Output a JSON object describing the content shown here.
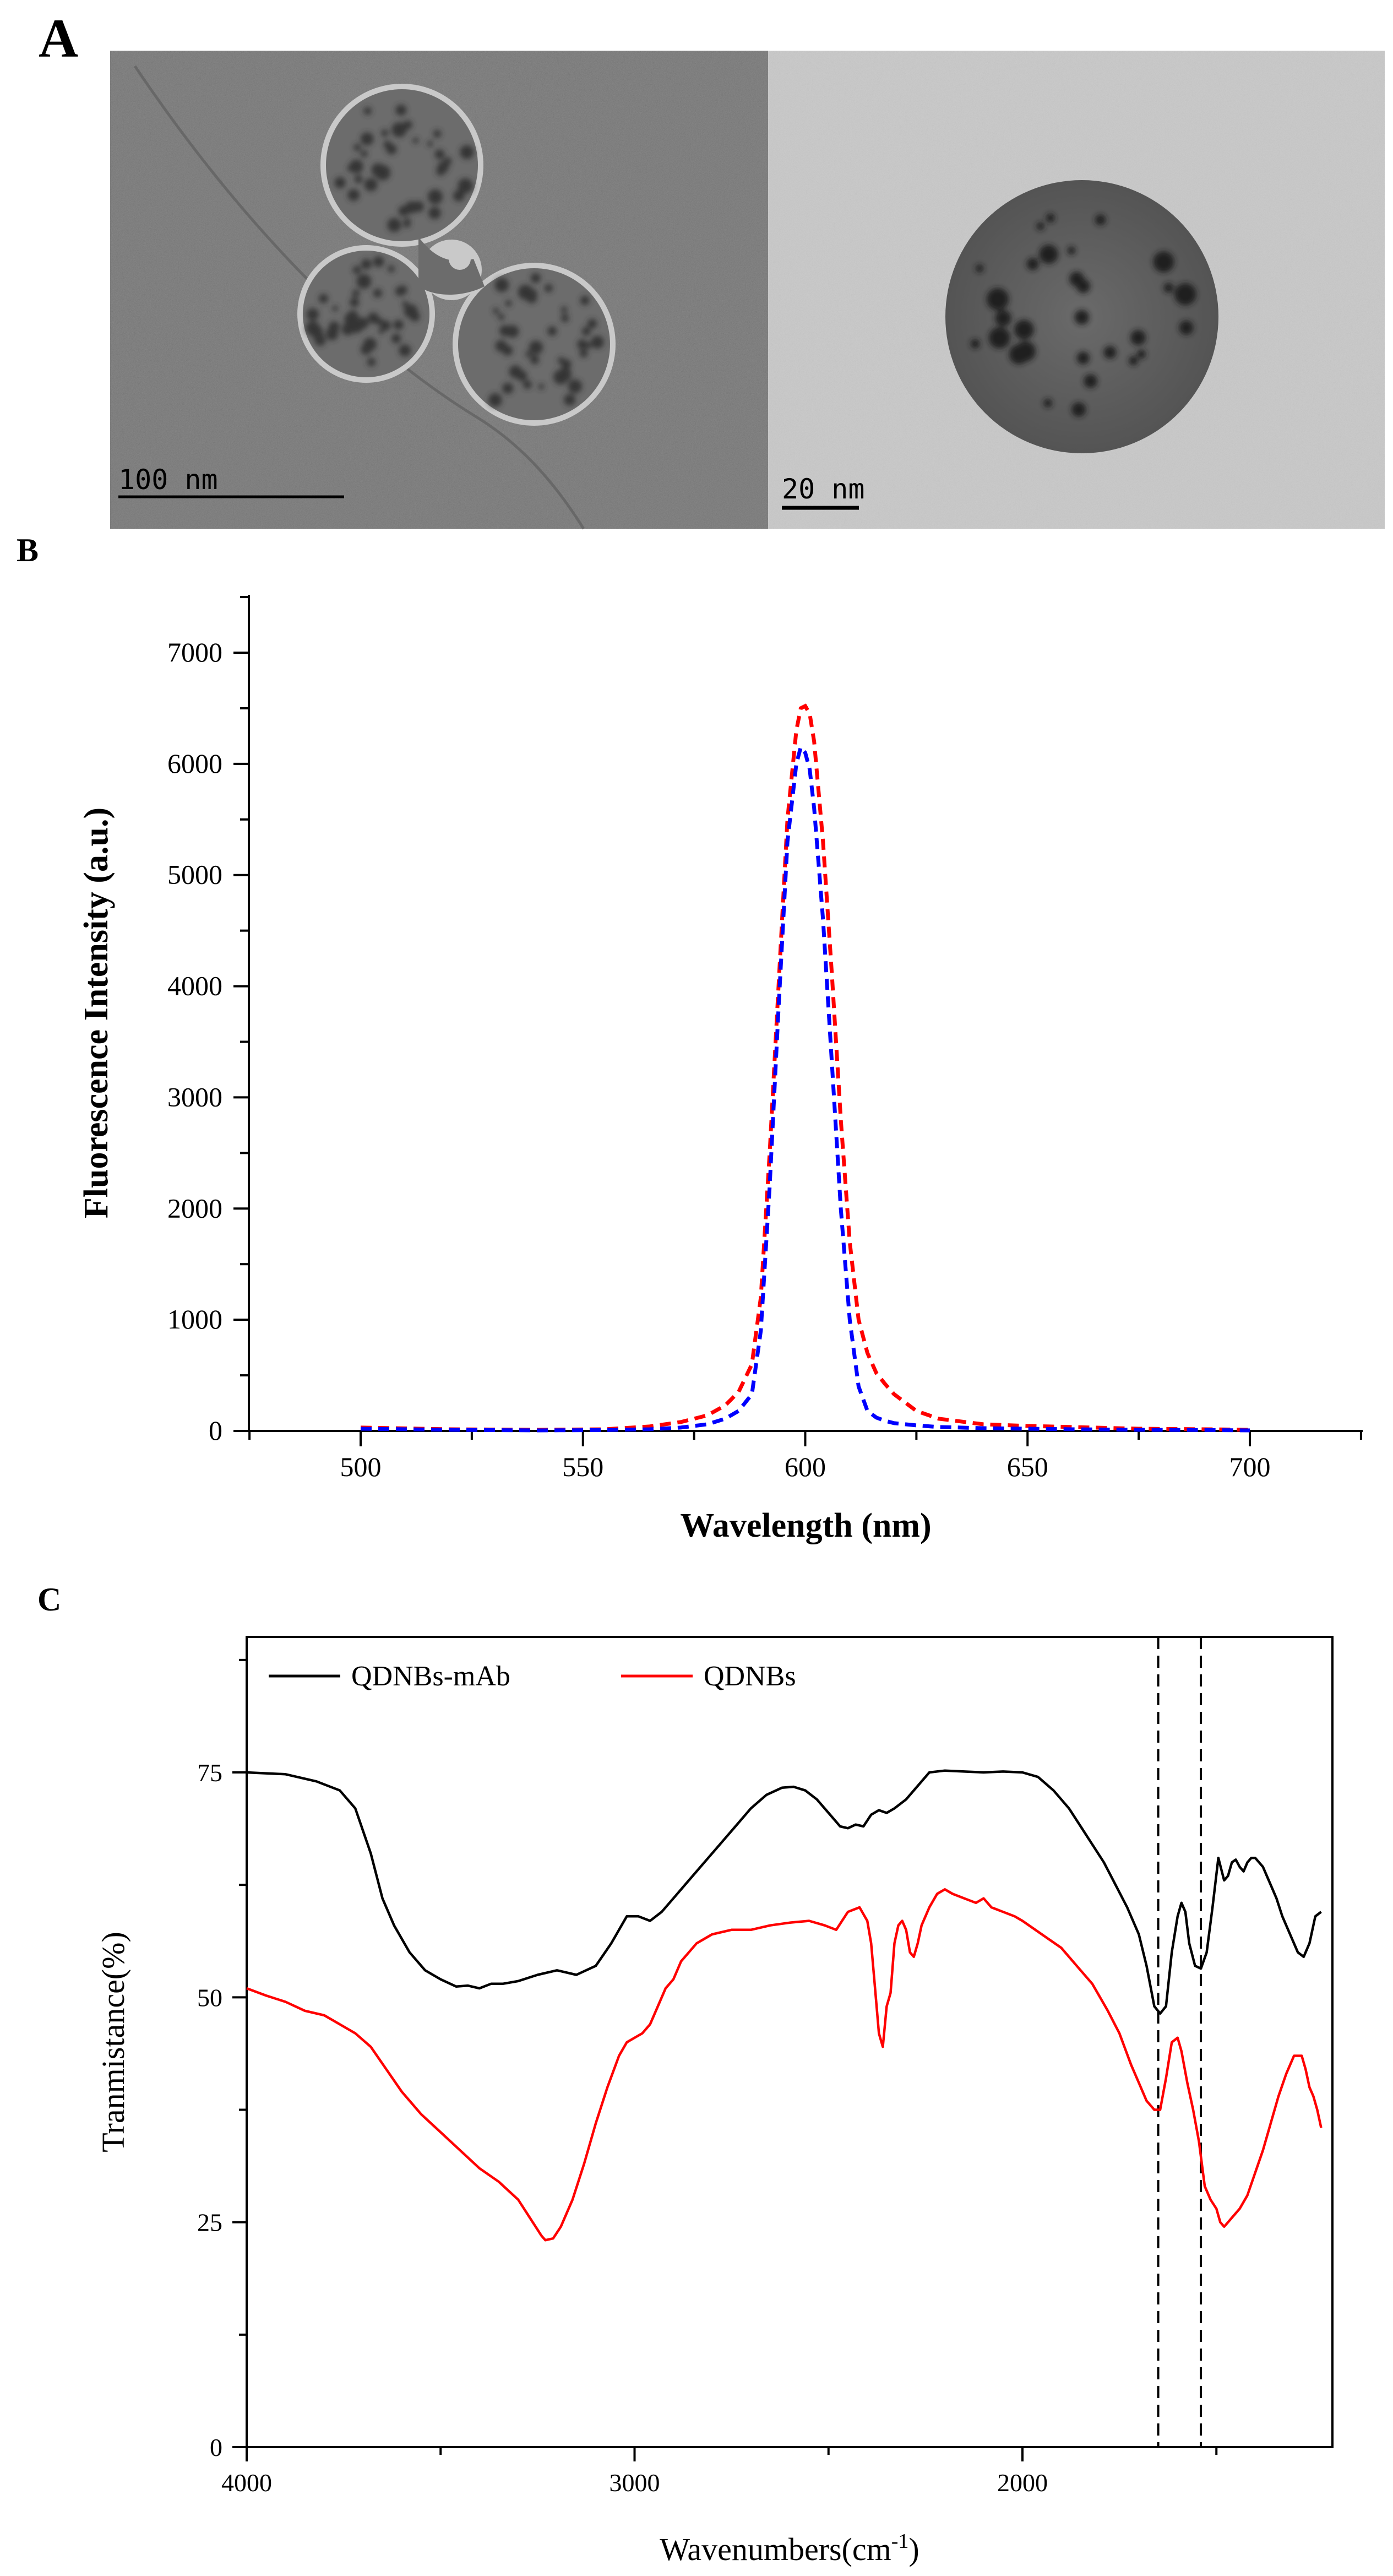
{
  "panels": {
    "a_label": "A",
    "b_label": "B",
    "c_label": "C"
  },
  "tem": {
    "left_scale": "100 nm",
    "right_scale": "20 nm"
  },
  "chart_data": [
    {
      "type": "line",
      "title": "",
      "xlabel": "Wavelength (nm)",
      "ylabel": "Fluorescence Intensity (a.u.)",
      "xlim": [
        475,
        725
      ],
      "ylim": [
        0,
        7500
      ],
      "xticks": [
        500,
        550,
        600,
        650,
        700
      ],
      "yticks": [
        0,
        1000,
        2000,
        3000,
        4000,
        5000,
        6000,
        7000
      ],
      "line_style": "dashed",
      "x": [
        500,
        520,
        540,
        555,
        565,
        572,
        578,
        582,
        585,
        588,
        590,
        592,
        594,
        596,
        598,
        599,
        600,
        601,
        602,
        604,
        606,
        608,
        610,
        612,
        614,
        616,
        618,
        620,
        625,
        630,
        640,
        650,
        660,
        675,
        690,
        700
      ],
      "series": [
        {
          "color": "#ff0000",
          "values": [
            30,
            15,
            10,
            15,
            40,
            80,
            140,
            230,
            350,
            600,
            1200,
            2500,
            4000,
            5500,
            6300,
            6500,
            6520,
            6450,
            6200,
            5300,
            4100,
            2800,
            1700,
            1000,
            700,
            520,
            420,
            330,
            180,
            110,
            60,
            45,
            35,
            20,
            15,
            10
          ]
        },
        {
          "color": "#0000ff",
          "values": [
            20,
            10,
            5,
            8,
            15,
            30,
            60,
            110,
            180,
            330,
            900,
            2200,
            3800,
            5300,
            6000,
            6150,
            6100,
            5950,
            5600,
            4600,
            3300,
            2000,
            1000,
            400,
            180,
            120,
            90,
            70,
            50,
            35,
            25,
            20,
            15,
            10,
            8,
            5
          ]
        }
      ]
    },
    {
      "type": "line",
      "title": "",
      "xlabel": "Wavenumbers(cm",
      "xlabel_sup": "-1",
      "xlabel_end": ")",
      "ylabel": "Tranmistance(%)",
      "xlim": [
        4000,
        1230
      ],
      "ylim": [
        0,
        90
      ],
      "xticks": [
        4000,
        3000,
        2000
      ],
      "yticks": [
        0,
        25,
        50,
        75
      ],
      "legend_position": "top-left",
      "vlines": [
        1650,
        1540
      ],
      "series": [
        {
          "name": "QDNBs-mAb",
          "color": "#000000",
          "x": [
            4000,
            3900,
            3820,
            3760,
            3720,
            3680,
            3650,
            3620,
            3580,
            3540,
            3500,
            3460,
            3430,
            3400,
            3370,
            3340,
            3300,
            3250,
            3200,
            3150,
            3100,
            3060,
            3020,
            2990,
            2960,
            2930,
            2900,
            2860,
            2820,
            2780,
            2740,
            2700,
            2660,
            2620,
            2590,
            2560,
            2530,
            2500,
            2470,
            2450,
            2430,
            2410,
            2390,
            2370,
            2350,
            2330,
            2300,
            2270,
            2240,
            2200,
            2150,
            2100,
            2050,
            2000,
            1960,
            1920,
            1880,
            1850,
            1820,
            1790,
            1760,
            1730,
            1700,
            1680,
            1660,
            1645,
            1630,
            1615,
            1600,
            1590,
            1580,
            1570,
            1555,
            1540,
            1525,
            1510,
            1495,
            1480,
            1470,
            1460,
            1450,
            1440,
            1430,
            1420,
            1410,
            1400,
            1390,
            1380,
            1370,
            1360,
            1345,
            1330,
            1310,
            1290,
            1275,
            1260,
            1245,
            1230
          ],
          "y": [
            75,
            74.8,
            74,
            73,
            71,
            66,
            61,
            58,
            55,
            53,
            52,
            51.2,
            51.3,
            51,
            51.5,
            51.5,
            51.8,
            52.5,
            53,
            52.5,
            53.5,
            56,
            59,
            59,
            58.5,
            59.5,
            61,
            63,
            65,
            67,
            69,
            71,
            72.5,
            73.3,
            73.4,
            73,
            72,
            70.5,
            69,
            68.8,
            69.2,
            69,
            70.3,
            70.8,
            70.5,
            71,
            72,
            73.5,
            75,
            75.2,
            75.1,
            75,
            75.1,
            75,
            74.5,
            73,
            71,
            69,
            67,
            65,
            62.5,
            60,
            57,
            53.5,
            49,
            48.2,
            49,
            55,
            59,
            60.5,
            59.5,
            56,
            53.5,
            53.2,
            55,
            60,
            65.5,
            63,
            63.5,
            65,
            65.3,
            64.5,
            64,
            65,
            65.5,
            65.5,
            65,
            64.5,
            63.5,
            62.5,
            61,
            59,
            57,
            55,
            54.5,
            56,
            59,
            59.5
          ]
        },
        {
          "name": "QDNBs",
          "color": "#ff0000",
          "x": [
            4000,
            3950,
            3900,
            3850,
            3800,
            3760,
            3720,
            3680,
            3640,
            3600,
            3550,
            3500,
            3450,
            3400,
            3350,
            3300,
            3270,
            3240,
            3230,
            3210,
            3190,
            3160,
            3130,
            3100,
            3070,
            3040,
            3020,
            3000,
            2980,
            2960,
            2940,
            2920,
            2900,
            2880,
            2860,
            2840,
            2800,
            2750,
            2700,
            2650,
            2600,
            2550,
            2510,
            2480,
            2450,
            2420,
            2400,
            2390,
            2380,
            2370,
            2360,
            2350,
            2340,
            2330,
            2320,
            2310,
            2300,
            2290,
            2280,
            2270,
            2260,
            2240,
            2220,
            2200,
            2180,
            2150,
            2120,
            2100,
            2080,
            2050,
            2020,
            2000,
            1950,
            1900,
            1860,
            1820,
            1780,
            1750,
            1720,
            1700,
            1680,
            1660,
            1645,
            1630,
            1615,
            1600,
            1590,
            1575,
            1560,
            1545,
            1530,
            1515,
            1500,
            1490,
            1480,
            1470,
            1460,
            1440,
            1420,
            1400,
            1380,
            1360,
            1340,
            1320,
            1300,
            1280,
            1270,
            1260,
            1250,
            1240,
            1230
          ],
          "y": [
            51,
            50.2,
            49.5,
            48.5,
            48,
            47,
            46,
            44.5,
            42,
            39.5,
            37,
            35,
            33,
            31,
            29.5,
            27.5,
            25.5,
            23.5,
            23,
            23.2,
            24.5,
            27.5,
            31.5,
            36,
            40,
            43.5,
            45,
            45.5,
            46,
            47,
            49,
            51,
            52,
            54,
            55,
            56,
            57,
            57.5,
            57.5,
            58,
            58.3,
            58.5,
            58,
            57.5,
            59.5,
            60,
            58.5,
            56,
            51,
            46,
            44.5,
            49,
            50.5,
            56,
            58,
            58.5,
            57.5,
            55,
            54.5,
            56,
            58,
            60,
            61.5,
            62,
            61.5,
            61,
            60.5,
            61,
            60,
            59.5,
            59,
            58.5,
            57,
            55.5,
            53.5,
            51.5,
            48.5,
            46,
            42.5,
            40.5,
            38.5,
            37.5,
            37.5,
            41,
            45,
            45.5,
            44,
            40.5,
            37.5,
            34,
            29,
            27.5,
            26.5,
            25,
            24.5,
            25,
            25.5,
            26.5,
            28,
            30.5,
            33,
            36,
            39,
            41.5,
            43.5,
            43.5,
            42,
            40,
            39,
            37.5,
            35.5
          ]
        }
      ]
    }
  ]
}
